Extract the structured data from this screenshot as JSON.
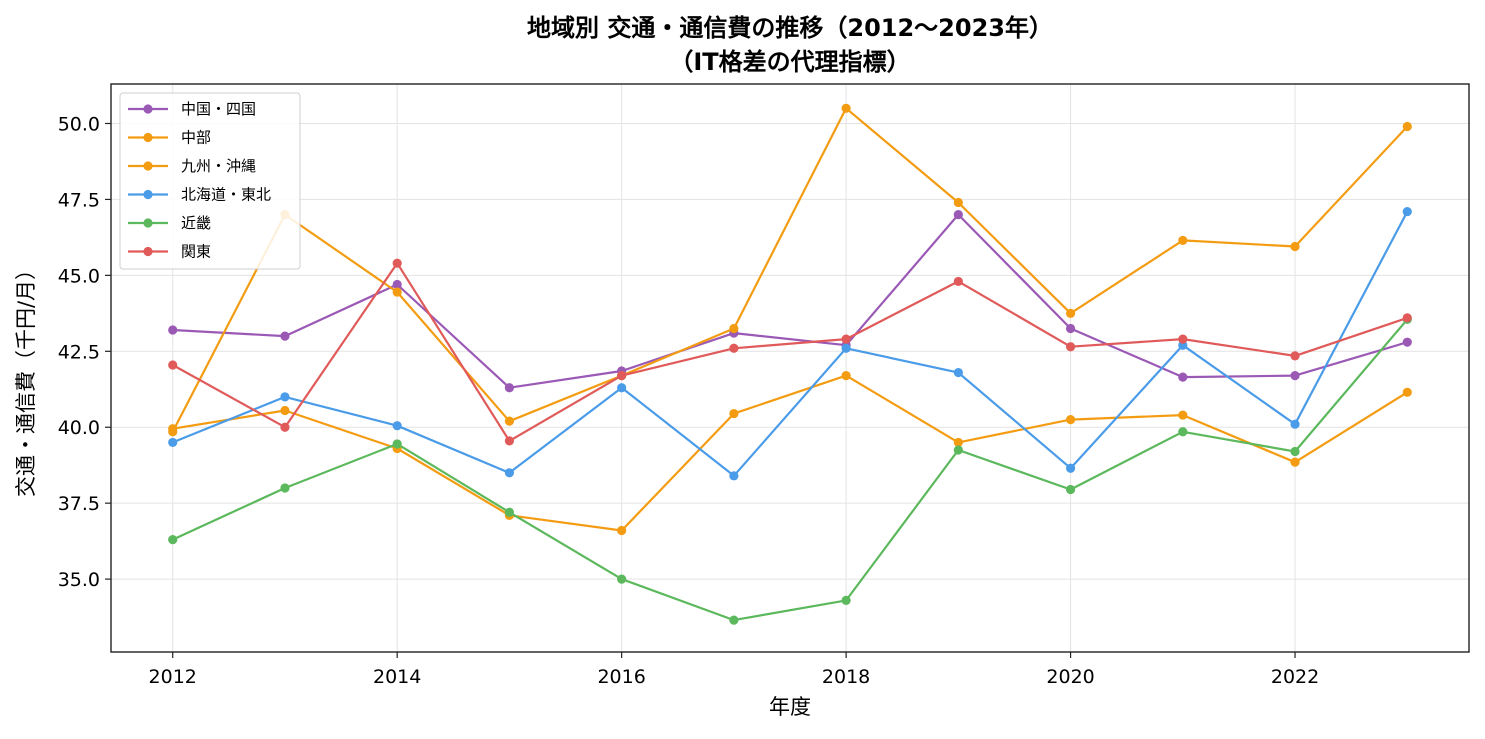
{
  "chart_data": {
    "type": "line",
    "title": "地域別 交通・通信費の推移（2012〜2023年）",
    "subtitle": "（IT格差の代理指標）",
    "xlabel": "年度",
    "ylabel": "交通・通信費（千円/月）",
    "x": [
      2012,
      2013,
      2014,
      2015,
      2016,
      2017,
      2018,
      2019,
      2020,
      2021,
      2022,
      2023
    ],
    "xlim": [
      2011.45,
      2023.55
    ],
    "ylim": [
      32.6,
      51.3
    ],
    "xticks": [
      2012,
      2014,
      2016,
      2018,
      2020,
      2022
    ],
    "xtick_labels": [
      "2012",
      "2014",
      "2016",
      "2018",
      "2020",
      "2022"
    ],
    "yticks": [
      35.0,
      37.5,
      40.0,
      42.5,
      45.0,
      47.5,
      50.0
    ],
    "ytick_labels": [
      "35.0",
      "37.5",
      "40.0",
      "42.5",
      "45.0",
      "47.5",
      "50.0"
    ],
    "grid": true,
    "legend_position": "top-left",
    "series": [
      {
        "name": "中国・四国",
        "color": "#9b59b6",
        "values": [
          43.2,
          43.0,
          44.7,
          41.3,
          41.85,
          43.1,
          42.7,
          47.0,
          43.25,
          41.65,
          41.7,
          42.8
        ]
      },
      {
        "name": "中部",
        "color": "#f39c12",
        "values": [
          39.85,
          47.0,
          44.45,
          40.2,
          41.7,
          43.25,
          50.5,
          47.4,
          43.75,
          46.15,
          45.95,
          49.9
        ]
      },
      {
        "name": "九州・沖縄",
        "color": "#f39c12",
        "values": [
          39.95,
          40.55,
          39.3,
          37.1,
          36.6,
          40.45,
          41.7,
          39.5,
          40.25,
          40.4,
          38.85,
          41.15
        ]
      },
      {
        "name": "北海道・東北",
        "color": "#4a9be8",
        "values": [
          39.5,
          41.0,
          40.05,
          38.5,
          41.3,
          38.4,
          42.6,
          41.8,
          38.65,
          42.7,
          40.1,
          47.1
        ]
      },
      {
        "name": "近畿",
        "color": "#5cb85c",
        "values": [
          36.3,
          38.0,
          39.45,
          37.2,
          35.0,
          33.65,
          34.3,
          39.25,
          37.95,
          39.85,
          39.2,
          43.55
        ]
      },
      {
        "name": "関東",
        "color": "#e05a5a",
        "values": [
          42.05,
          40.0,
          45.4,
          39.55,
          41.7,
          42.6,
          42.9,
          44.8,
          42.65,
          42.9,
          42.35,
          43.6
        ]
      }
    ]
  }
}
